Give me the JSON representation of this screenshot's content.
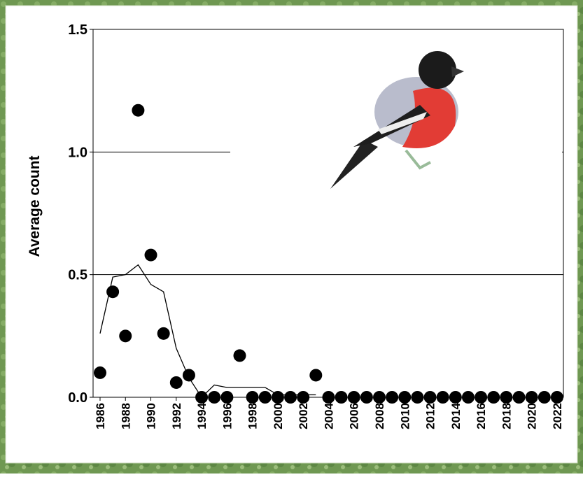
{
  "chart_data": {
    "type": "scatter",
    "y_label": "Average count",
    "x": [
      1986,
      1987,
      1988,
      1989,
      1990,
      1991,
      1992,
      1993,
      1994,
      1995,
      1996,
      1997,
      1998,
      1999,
      2000,
      2001,
      2002,
      2003,
      2004,
      2005,
      2006,
      2007,
      2008,
      2009,
      2010,
      2011,
      2012,
      2013,
      2014,
      2015,
      2016,
      2017,
      2018,
      2019,
      2020,
      2021,
      2022
    ],
    "series": [
      {
        "type": "scatter",
        "color": "#000000",
        "values": [
          0.1,
          0.43,
          0.25,
          1.17,
          0.58,
          0.26,
          0.06,
          0.09,
          0,
          0,
          0,
          0.17,
          0,
          0,
          0,
          0,
          0,
          0.09,
          0,
          0,
          0,
          0,
          0,
          0,
          0,
          0,
          0,
          0,
          0,
          0,
          0,
          0,
          0,
          0,
          0,
          0,
          0
        ]
      },
      {
        "type": "line",
        "color": "#000000",
        "values": [
          0.26,
          0.49,
          0.5,
          0.54,
          0.46,
          0.43,
          0.2,
          0.08,
          0,
          0.05,
          0.04,
          0.04,
          0.04,
          0.04,
          0.01,
          0.01,
          0.01,
          0.01,
          null,
          null,
          null,
          null,
          null,
          null,
          null,
          null,
          null,
          null,
          null,
          null,
          null,
          null,
          null,
          null,
          null,
          null,
          null
        ]
      }
    ],
    "xlim": [
      1985.45,
      2022.5
    ],
    "xticks": [
      1986,
      1988,
      1990,
      1992,
      1994,
      1996,
      1998,
      2000,
      2002,
      2004,
      2006,
      2008,
      2010,
      2012,
      2014,
      2016,
      2018,
      2020,
      2022
    ],
    "ylim": [
      0,
      1.5
    ],
    "yticks": [
      {
        "value": 0,
        "label": "0.0"
      },
      {
        "value": 0.5,
        "label": "0.5"
      },
      {
        "value": 1,
        "label": "1.0"
      },
      {
        "value": 1.5,
        "label": "1.5"
      }
    ],
    "grid": true
  }
}
